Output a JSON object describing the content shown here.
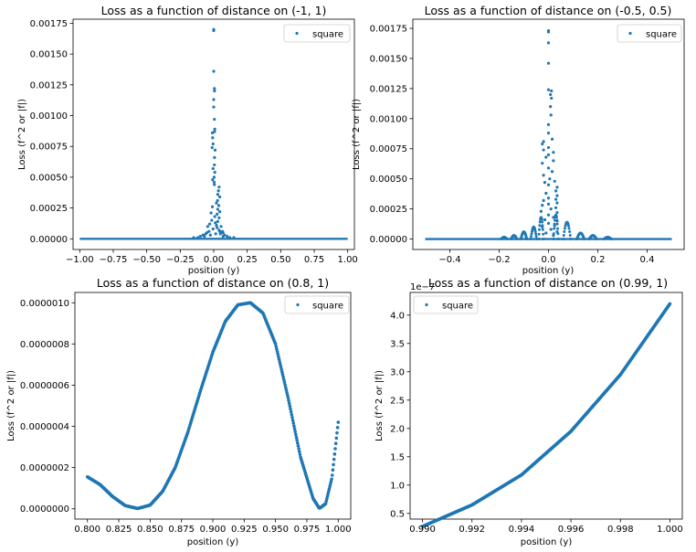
{
  "colors": {
    "series": "#1f77b4",
    "axis": "#000000",
    "legend_edge": "#cccccc"
  },
  "chart_data": [
    {
      "type": "scatter",
      "title": "Loss as a function of distance on (-1, 1)",
      "xlabel": "position (y)",
      "ylabel": "Loss (f^2 or |f|)",
      "xlim": [
        -1.05,
        1.05
      ],
      "ylim": [
        -8.7e-05,
        0.001783
      ],
      "xticks": [
        -1.0,
        -0.75,
        -0.5,
        -0.25,
        0.0,
        0.25,
        0.5,
        0.75,
        1.0
      ],
      "xtick_labels": [
        "−1.00",
        "−0.75",
        "−0.50",
        "−0.25",
        "0.00",
        "0.25",
        "0.50",
        "0.75",
        "1.00"
      ],
      "yticks": [
        0,
        0.00025,
        0.0005,
        0.00075,
        0.001,
        0.00125,
        0.0015,
        0.00175
      ],
      "ytick_labels": [
        "0.00000",
        "0.00025",
        "0.00050",
        "0.00075",
        "0.00100",
        "0.00125",
        "0.00150",
        "0.00175"
      ],
      "offset_text": "",
      "legend": {
        "position": "upper right",
        "entries": [
          "square"
        ]
      },
      "grid": false,
      "series": [
        {
          "name": "square",
          "baseline": {
            "x_range": [
              -1.0,
              1.0
            ],
            "y": 0.0
          },
          "points": [
            [
              0.0,
              0.0017
            ],
            [
              0.0,
              0.00169
            ],
            [
              0.0,
              0.00136
            ],
            [
              0.005,
              0.00122
            ],
            [
              0.006,
              0.0012
            ],
            [
              0.0,
              0.00113
            ],
            [
              0.0,
              0.00107
            ],
            [
              0.005,
              0.00097
            ],
            [
              0.008,
              0.00089
            ],
            [
              0.006,
              0.00087
            ],
            [
              -0.01,
              0.00086
            ],
            [
              -0.008,
              0.00082
            ],
            [
              -0.005,
              0.00077
            ],
            [
              -0.012,
              0.00074
            ],
            [
              0.01,
              0.00072
            ],
            [
              0.006,
              0.00066
            ],
            [
              0.005,
              0.0006
            ],
            [
              -0.005,
              0.00057
            ],
            [
              0.008,
              0.00054
            ],
            [
              0.003,
              0.0005
            ],
            [
              -0.008,
              0.00048
            ],
            [
              0.003,
              0.00046
            ],
            [
              0.005,
              0.00044
            ],
            [
              0.04,
              0.00042
            ],
            [
              0.035,
              0.00039
            ],
            [
              0.03,
              0.00036
            ],
            [
              0.045,
              0.00034
            ],
            [
              0.028,
              0.00031
            ],
            [
              0.02,
              0.00029
            ],
            [
              0.038,
              0.00027
            ],
            [
              -0.01,
              0.00026
            ],
            [
              0.03,
              0.00024
            ],
            [
              0.045,
              0.00022
            ],
            [
              -0.02,
              0.00021
            ],
            [
              0.025,
              0.0002
            ],
            [
              0.008,
              0.00018
            ],
            [
              0.04,
              0.00017
            ],
            [
              -0.015,
              0.00015
            ],
            [
              0.03,
              0.00014
            ],
            [
              0.012,
              0.00013
            ],
            [
              -0.03,
              0.00012
            ],
            [
              0.02,
              0.00011
            ],
            [
              0.055,
              0.0001
            ],
            [
              -0.045,
              0.0001
            ],
            [
              0.025,
              9e-05
            ],
            [
              -0.005,
              8e-05
            ],
            [
              0.04,
              7e-05
            ],
            [
              -0.035,
              6e-05
            ],
            [
              0.06,
              5e-05
            ],
            [
              -0.06,
              4e-05
            ],
            [
              0.015,
              4e-05
            ],
            [
              -0.025,
              3e-05
            ],
            [
              0.07,
              2e-05
            ],
            [
              -0.07,
              2e-05
            ],
            [
              0.05,
              4e-05
            ],
            [
              0.08,
              3e-05
            ],
            [
              0.065,
              6e-05
            ],
            [
              0.07,
              5e-05
            ],
            [
              -0.05,
              5e-05
            ],
            [
              0.045,
              6e-05
            ],
            [
              -0.1,
              2e-05
            ],
            [
              0.1,
              2e-05
            ],
            [
              -0.12,
              1e-05
            ],
            [
              -0.08,
              3e-05
            ],
            [
              0.12,
              1e-05
            ],
            [
              0.15,
              1e-05
            ],
            [
              -0.15,
              1e-05
            ]
          ]
        }
      ]
    },
    {
      "type": "scatter",
      "title": "Loss as a function of distance on (-0.5, 0.5)",
      "xlabel": "position (y)",
      "ylabel": "Loss (f^2 or |f|)",
      "xlim": [
        -0.55,
        0.55
      ],
      "ylim": [
        -8.7e-05,
        0.001826
      ],
      "xticks": [
        -0.4,
        -0.2,
        0.0,
        0.2,
        0.4
      ],
      "xtick_labels": [
        "−0.4",
        "−0.2",
        "0.0",
        "0.2",
        "0.4"
      ],
      "yticks": [
        0,
        0.00025,
        0.0005,
        0.00075,
        0.001,
        0.00125,
        0.0015,
        0.00175
      ],
      "ytick_labels": [
        "0.00000",
        "0.00025",
        "0.00050",
        "0.00075",
        "0.00100",
        "0.00125",
        "0.00150",
        "0.00175"
      ],
      "offset_text": "",
      "legend": {
        "position": "upper right",
        "entries": [
          "square"
        ]
      },
      "grid": false,
      "series": [
        {
          "name": "square",
          "baseline": {
            "x_range": [
              -0.5,
              0.5
            ],
            "y": 0.0
          },
          "ripples": [
            {
              "x": -0.18,
              "w": 0.012,
              "h": 1.5e-05
            },
            {
              "x": -0.14,
              "w": 0.012,
              "h": 3e-05
            },
            {
              "x": -0.1,
              "w": 0.012,
              "h": 6e-05
            },
            {
              "x": -0.06,
              "w": 0.012,
              "h": 0.0001
            },
            {
              "x": -0.03,
              "w": 0.01,
              "h": 0.00018
            },
            {
              "x": 0.03,
              "w": 0.01,
              "h": 0.0002
            },
            {
              "x": 0.075,
              "w": 0.015,
              "h": 0.00014
            },
            {
              "x": 0.13,
              "w": 0.015,
              "h": 5e-05
            },
            {
              "x": 0.18,
              "w": 0.015,
              "h": 3e-05
            },
            {
              "x": 0.24,
              "w": 0.015,
              "h": 1.5e-05
            }
          ],
          "points": [
            [
              0.0,
              0.00173
            ],
            [
              0.0,
              0.00172
            ],
            [
              0.0,
              0.00163
            ],
            [
              0.0,
              0.00146
            ],
            [
              0.0,
              0.00124
            ],
            [
              0.012,
              0.00123
            ],
            [
              0.008,
              0.0012
            ],
            [
              0.012,
              0.00117
            ],
            [
              0.008,
              0.0011
            ],
            [
              0.01,
              0.00103
            ],
            [
              0.0,
              0.00095
            ],
            [
              0.0,
              0.00088
            ],
            [
              0.015,
              0.00083
            ],
            [
              -0.02,
              0.00081
            ],
            [
              -0.025,
              0.00079
            ],
            [
              0.0,
              0.00076
            ],
            [
              -0.02,
              0.00074
            ],
            [
              0.02,
              0.00072
            ],
            [
              0.0,
              0.0007
            ],
            [
              -0.01,
              0.00068
            ],
            [
              0.02,
              0.00065
            ],
            [
              -0.025,
              0.00063
            ],
            [
              0.0,
              0.00059
            ],
            [
              0.015,
              0.00056
            ],
            [
              -0.02,
              0.00053
            ],
            [
              0.005,
              0.0005
            ],
            [
              0.025,
              0.00048
            ],
            [
              -0.015,
              0.00047
            ],
            [
              0.0,
              0.00045
            ],
            [
              0.035,
              0.00043
            ],
            [
              0.03,
              0.0004
            ],
            [
              -0.01,
              0.00038
            ],
            [
              0.035,
              0.00036
            ],
            [
              0.0,
              0.00034
            ],
            [
              0.03,
              0.00033
            ],
            [
              -0.02,
              0.00032
            ],
            [
              0.035,
              0.0003
            ],
            [
              0.0,
              0.00029
            ],
            [
              -0.025,
              0.00028
            ],
            [
              0.03,
              0.00026
            ],
            [
              0.01,
              0.00025
            ],
            [
              -0.03,
              0.00023
            ],
            [
              0.035,
              0.00022
            ],
            [
              0.0,
              0.0002
            ],
            [
              0.02,
              0.00018
            ],
            [
              -0.015,
              0.00016
            ],
            [
              0.035,
              0.00015
            ],
            [
              0.0,
              0.00013
            ],
            [
              0.025,
              0.00011
            ],
            [
              -0.025,
              0.0001
            ],
            [
              0.01,
              8e-05
            ],
            [
              0.035,
              6e-05
            ],
            [
              -0.01,
              5e-05
            ],
            [
              0.02,
              3e-05
            ]
          ]
        }
      ]
    },
    {
      "type": "scatter",
      "title": "Loss as a function of distance on (0.8, 1)",
      "xlabel": "position (y)",
      "ylabel": "Loss (f^2 or |f|)",
      "xlim": [
        0.79,
        1.01
      ],
      "ylim": [
        -5e-08,
        1.05e-06
      ],
      "xticks": [
        0.8,
        0.825,
        0.85,
        0.875,
        0.9,
        0.925,
        0.95,
        0.975,
        1.0
      ],
      "xtick_labels": [
        "0.800",
        "0.825",
        "0.850",
        "0.875",
        "0.900",
        "0.925",
        "0.950",
        "0.975",
        "1.000"
      ],
      "yticks": [
        0,
        2e-07,
        4e-07,
        6e-07,
        8e-07,
        1e-06
      ],
      "ytick_labels": [
        "0.0000000",
        "0.0000002",
        "0.0000004",
        "0.0000006",
        "0.0000008",
        "0.0000010"
      ],
      "offset_text": "",
      "legend": {
        "position": "upper right",
        "entries": [
          "square"
        ]
      },
      "grid": false,
      "series": [
        {
          "name": "square",
          "x_range": [
            0.8,
            1.0
          ],
          "points": [
            [
              0.8,
              1.55e-07
            ],
            [
              0.81,
              1.18e-07
            ],
            [
              0.82,
              6e-08
            ],
            [
              0.83,
              1.6e-08
            ],
            [
              0.84,
              1.5e-09
            ],
            [
              0.85,
              1.8e-08
            ],
            [
              0.86,
              8.5e-08
            ],
            [
              0.87,
              2e-07
            ],
            [
              0.88,
              3.7e-07
            ],
            [
              0.89,
              5.7e-07
            ],
            [
              0.9,
              7.6e-07
            ],
            [
              0.91,
              9.1e-07
            ],
            [
              0.92,
              9.9e-07
            ],
            [
              0.93,
              1e-06
            ],
            [
              0.94,
              9.5e-07
            ],
            [
              0.95,
              8e-07
            ],
            [
              0.96,
              5.4e-07
            ],
            [
              0.97,
              2.5e-07
            ],
            [
              0.98,
              5e-08
            ],
            [
              0.985,
              2e-09
            ],
            [
              0.99,
              2.5e-08
            ],
            [
              0.995,
              1.5e-07
            ],
            [
              1.0,
              4.2e-07
            ]
          ]
        }
      ]
    },
    {
      "type": "scatter",
      "title": "Loss as a function of distance on (0.99, 1)",
      "xlabel": "position (y)",
      "ylabel": "Loss (f^2 or |f|)",
      "xlim": [
        0.9895,
        1.0005
      ],
      "ylim": [
        0.4,
        4.4
      ],
      "xticks": [
        0.99,
        0.992,
        0.994,
        0.996,
        0.998,
        1.0
      ],
      "xtick_labels": [
        "0.990",
        "0.992",
        "0.994",
        "0.996",
        "0.998",
        "1.000"
      ],
      "yticks": [
        0.5,
        1.0,
        1.5,
        2.0,
        2.5,
        3.0,
        3.5,
        4.0
      ],
      "ytick_labels": [
        "0.5",
        "1.0",
        "1.5",
        "2.0",
        "2.5",
        "3.0",
        "3.5",
        "4.0"
      ],
      "offset_text": "1e−7",
      "legend": {
        "position": "upper left",
        "entries": [
          "square"
        ]
      },
      "grid": false,
      "series": [
        {
          "name": "square",
          "x_range": [
            0.99,
            1.0
          ],
          "points": [
            [
              0.99,
              0.27
            ],
            [
              0.992,
              0.65
            ],
            [
              0.994,
              1.18
            ],
            [
              0.996,
              1.95
            ],
            [
              0.998,
              2.95
            ],
            [
              1.0,
              4.2
            ]
          ]
        }
      ]
    }
  ]
}
